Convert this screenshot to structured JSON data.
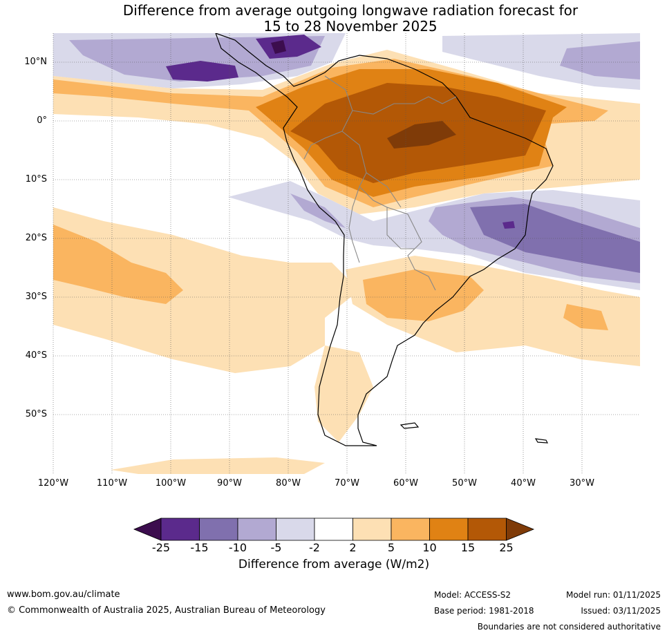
{
  "title": {
    "line1": "Difference from average outgoing longwave radiation forecast for",
    "line2": "15 to 28 November 2025"
  },
  "map": {
    "region": "South America",
    "lat_labels": [
      "10°N",
      "0°",
      "10°S",
      "20°S",
      "30°S",
      "40°S",
      "50°S"
    ],
    "lon_labels": [
      "120°W",
      "110°W",
      "100°W",
      "90°W",
      "80°W",
      "70°W",
      "60°W",
      "50°W",
      "40°W",
      "30°W"
    ]
  },
  "legend": {
    "title": "Difference from average (W/m2)",
    "tick_labels": [
      "-25",
      "-15",
      "-10",
      "-5",
      "-2",
      "2",
      "5",
      "10",
      "15",
      "25"
    ],
    "colors": [
      "#3c0d4e",
      "#5b2a8c",
      "#8070ae",
      "#b2a9d2",
      "#d9d9ea",
      "#ffffff",
      "#fde0b4",
      "#fab560",
      "#e08214",
      "#b35806",
      "#7f3b08"
    ]
  },
  "footer": {
    "url": "www.bom.gov.au/climate",
    "copyright": "© Commonwealth of Australia 2025, Australian Bureau of Meteorology",
    "model": "Model: ACCESS-S2",
    "base_period": "Base period: 1981-2018",
    "model_run": "Model run: 01/11/2025",
    "issued": "Issued: 03/11/2025",
    "disclaimer": "Boundaries are not considered authoritative"
  }
}
